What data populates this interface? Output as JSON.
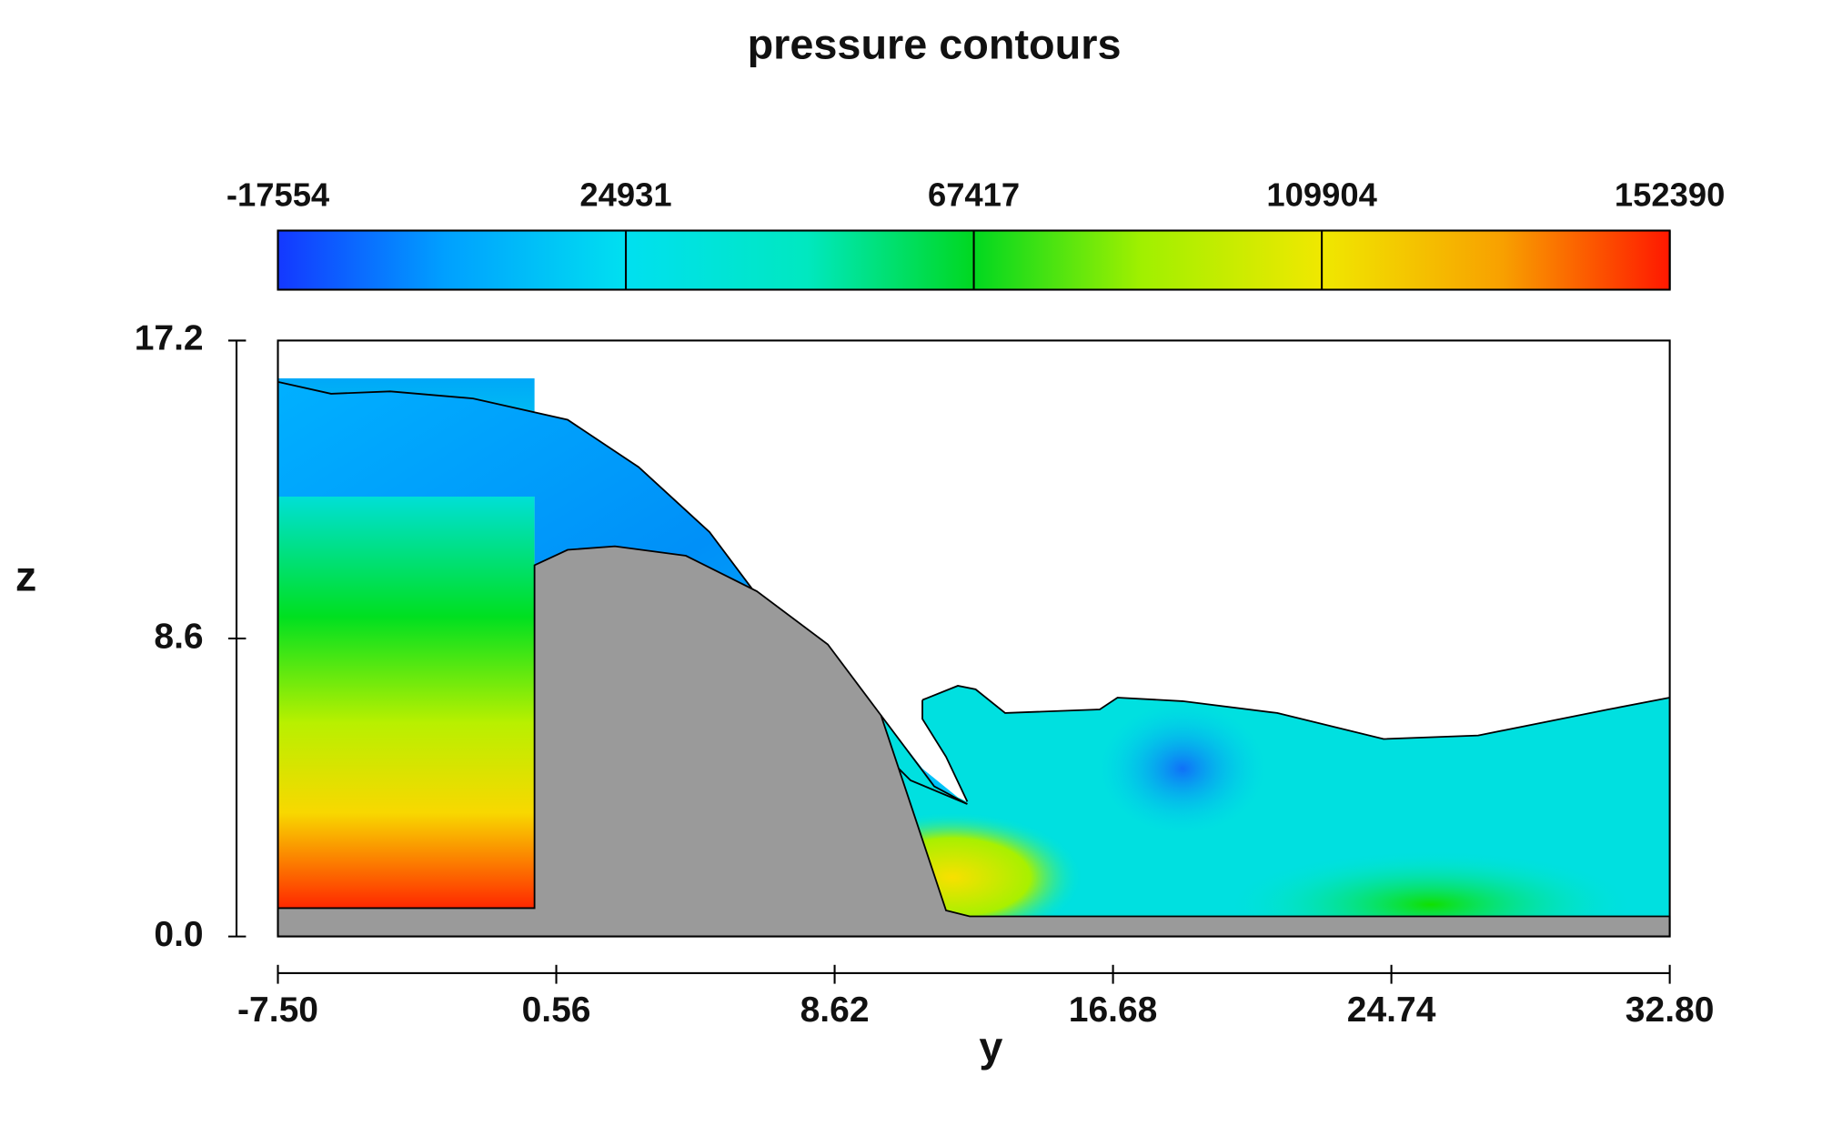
{
  "chart_data": {
    "type": "contour",
    "title": "pressure contours",
    "x_label": "y",
    "y_label": "z",
    "xlim": [
      -7.5,
      32.8
    ],
    "xticks": [
      {
        "value": -7.5,
        "label": "-7.50"
      },
      0.56,
      8.62,
      16.68,
      24.74,
      {
        "value": 32.8,
        "label": "32.80"
      }
    ],
    "ylim": [
      0,
      17.2
    ],
    "yticks": [
      {
        "value": 0,
        "label": "0.0"
      },
      8.6,
      17.2
    ],
    "colorbar": {
      "lim": [
        -17554,
        152390
      ],
      "ticks": [
        -17554,
        24931,
        67417,
        109904,
        152390
      ]
    }
  }
}
